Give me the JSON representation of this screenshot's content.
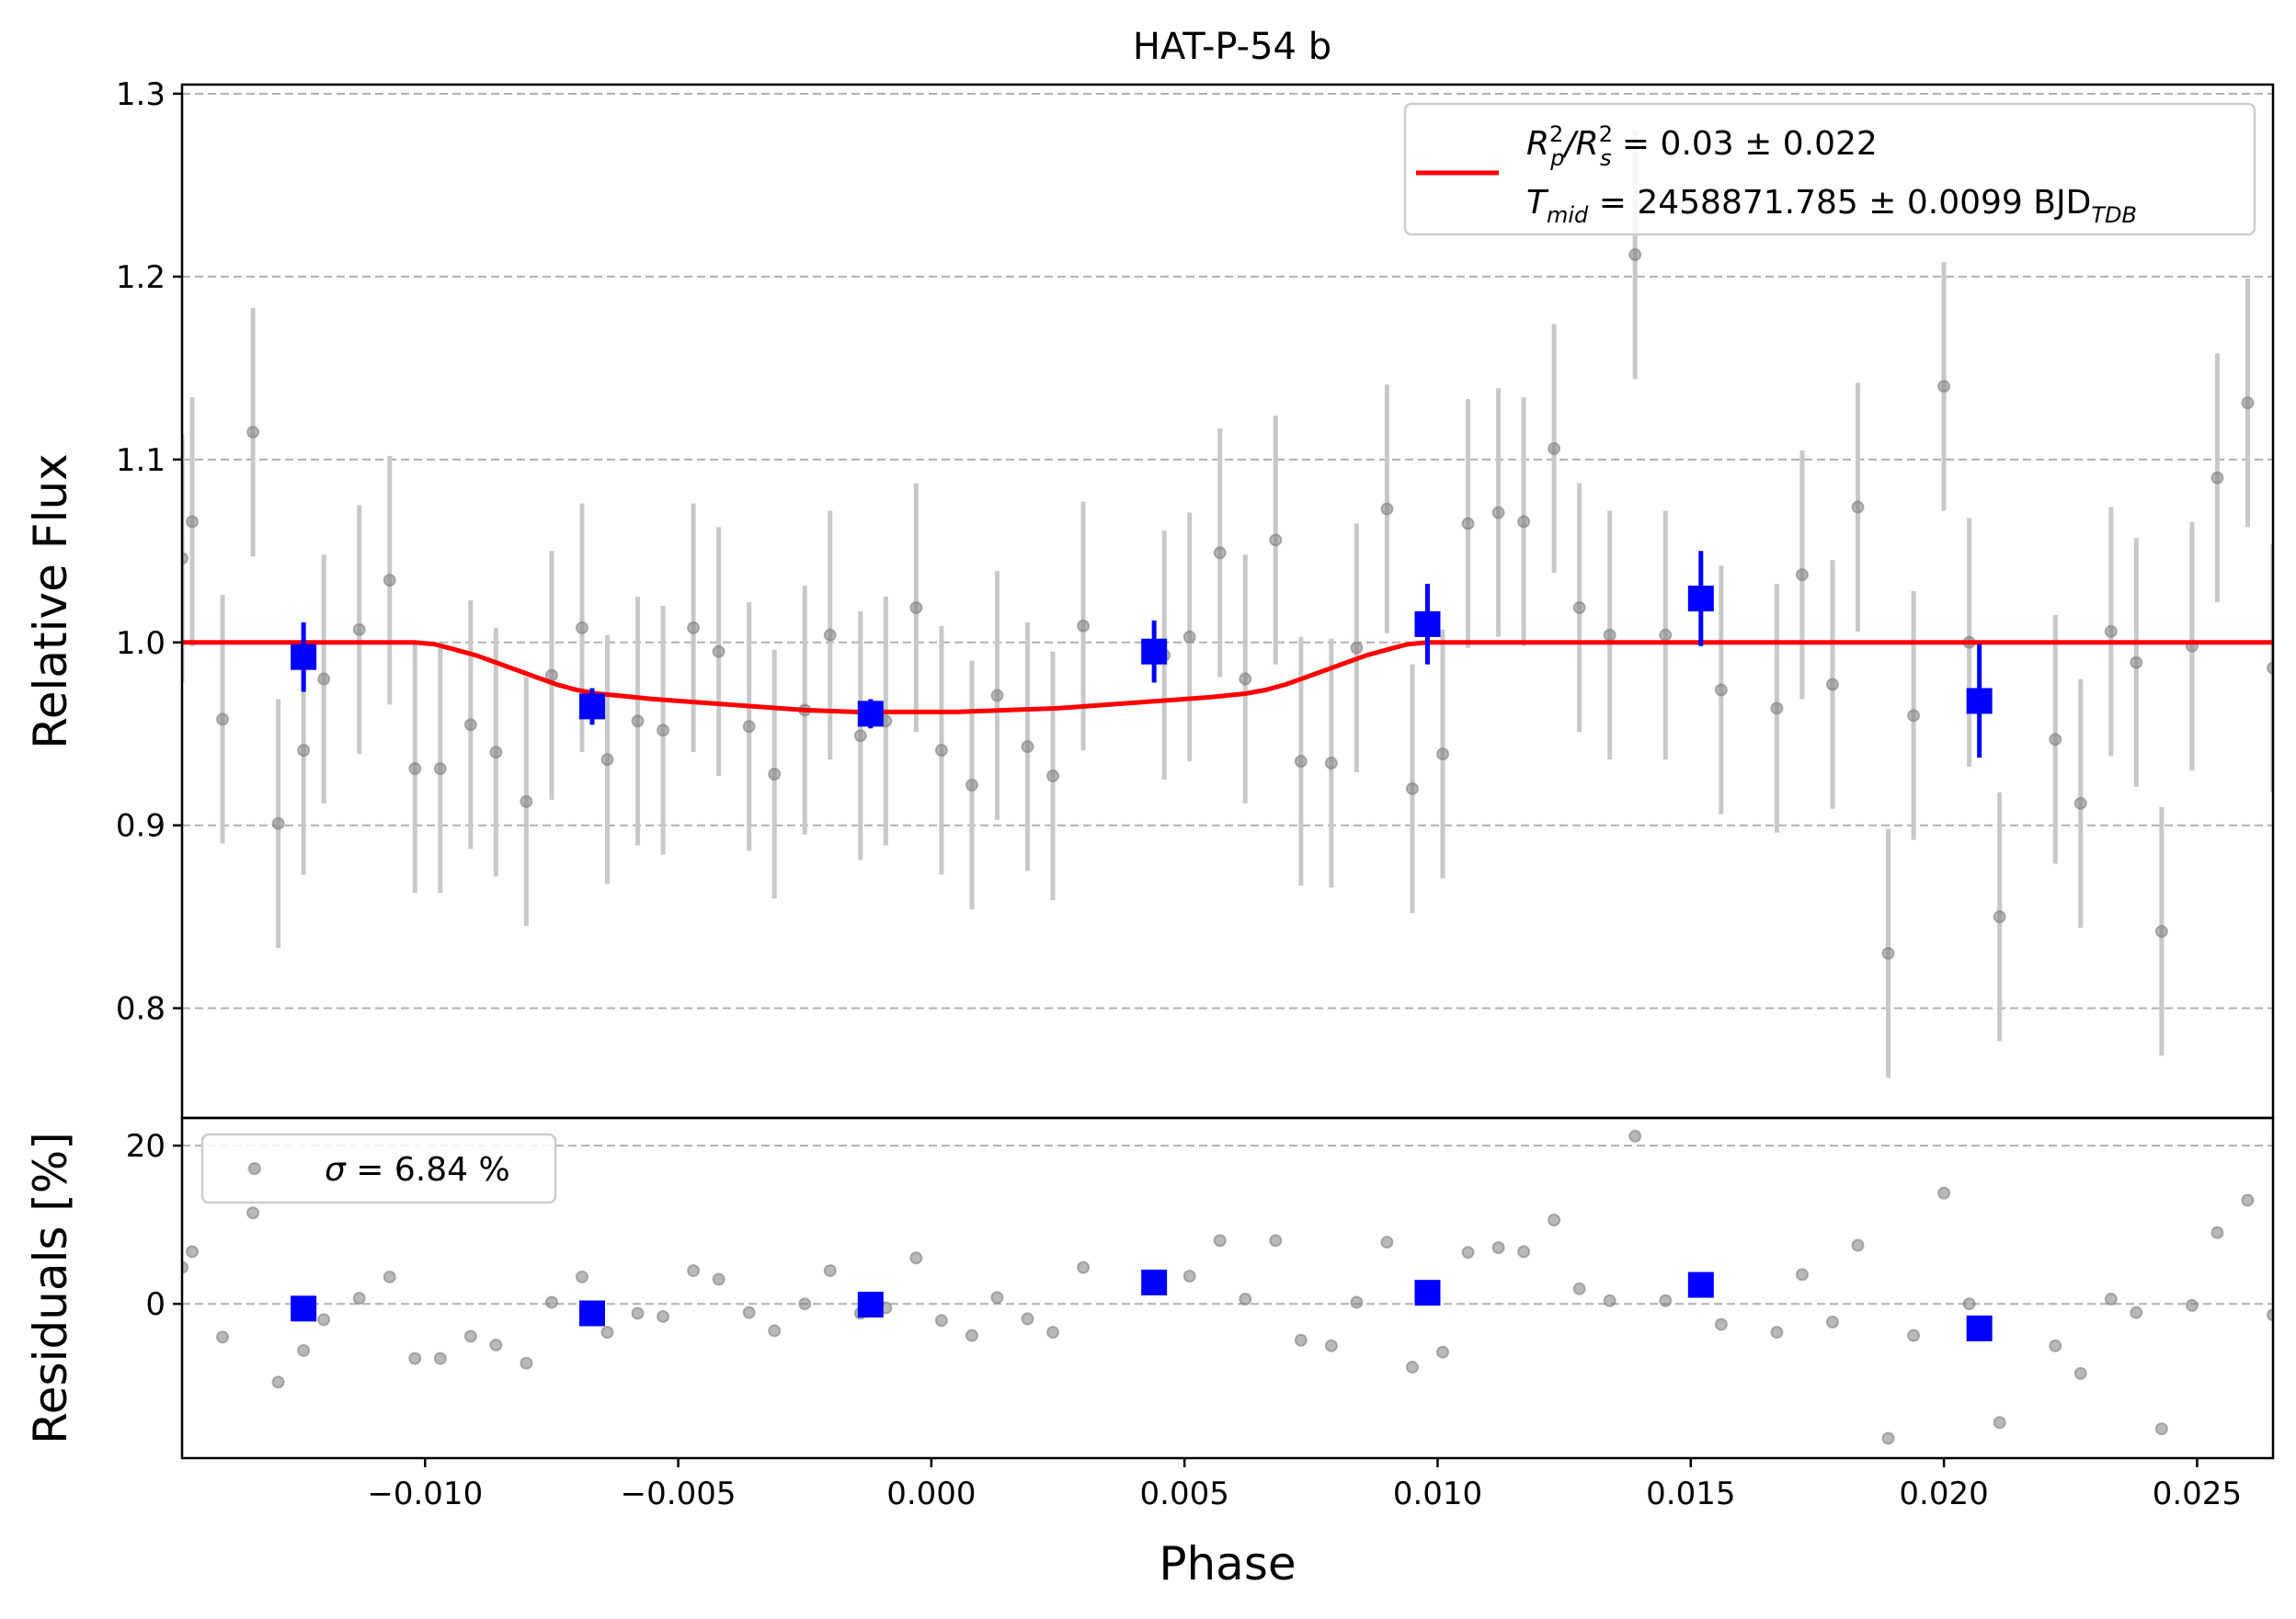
{
  "chart_data": {
    "title": "HAT-P-54 b",
    "xlabel": "Phase",
    "xlim": [
      -0.0148,
      0.0265
    ],
    "xticks": [
      -0.01,
      -0.005,
      0.0,
      0.005,
      0.01,
      0.015,
      0.02,
      0.025
    ],
    "xtick_labels": [
      "−0.010",
      "−0.005",
      "0.000",
      "0.005",
      "0.010",
      "0.015",
      "0.020",
      "0.025"
    ],
    "colors": {
      "raw": "#808080",
      "raw_err": "#c8c8c8",
      "binned": "#0000ff",
      "model": "#ff0000",
      "grid": "#b0b0b0"
    },
    "main_panel": {
      "type": "scatter",
      "ylabel": "Relative Flux",
      "ylim": [
        0.74,
        1.305
      ],
      "yticks": [
        0.8,
        0.9,
        1.0,
        1.1,
        1.2,
        1.3
      ],
      "ytick_labels": [
        "0.8",
        "0.9",
        "1.0",
        "1.1",
        "1.2",
        "1.3"
      ],
      "grid": "horizontal dashed",
      "legend_position": "top-right",
      "legend": {
        "line1_prefix": "R",
        "line1_sub1": "p",
        "line1_sup1": "2",
        "line1_slash": "/R",
        "line1_sub2": "s",
        "line1_sup2": "2",
        "line1_value": " = 0.03 ± 0.022",
        "line2_prefix": "T",
        "line2_sub": "mid",
        "line2_value": " = 2458871.785 ± 0.0099 BJD",
        "line2_unit_sub": "TDB"
      },
      "raw": {
        "x": [
          -0.0148,
          -0.0146,
          -0.014,
          -0.0134,
          -0.0129,
          -0.0124,
          -0.012,
          -0.0113,
          -0.0107,
          -0.0102,
          -0.0097,
          -0.0091,
          -0.0086,
          -0.008,
          -0.0075,
          -0.0069,
          -0.0064,
          -0.0058,
          -0.0053,
          -0.0047,
          -0.0042,
          -0.0036,
          -0.0031,
          -0.0025,
          -0.002,
          -0.0014,
          -0.0009,
          -0.0003,
          0.0002,
          0.0008,
          0.0013,
          0.0019,
          0.0024,
          0.003,
          0.0046,
          0.0051,
          0.0057,
          0.0062,
          0.0068,
          0.0073,
          0.0079,
          0.0084,
          0.009,
          0.0095,
          0.0101,
          0.0106,
          0.0112,
          0.0117,
          0.0123,
          0.0128,
          0.0134,
          0.0139,
          0.0145,
          0.0156,
          0.0167,
          0.0172,
          0.0178,
          0.0183,
          0.0189,
          0.0194,
          0.02,
          0.0205,
          0.0211,
          0.0222,
          0.0227,
          0.0233,
          0.0238,
          0.0243,
          0.0249,
          0.0254,
          0.026,
          0.0265
        ],
        "y": [
          1.046,
          1.066,
          0.958,
          1.115,
          0.901,
          0.941,
          0.98,
          1.007,
          1.034,
          0.931,
          0.931,
          0.955,
          0.94,
          0.913,
          0.982,
          1.008,
          0.936,
          0.957,
          0.952,
          1.008,
          0.995,
          0.954,
          0.928,
          0.963,
          1.004,
          0.949,
          0.957,
          1.019,
          0.941,
          0.922,
          0.971,
          0.943,
          0.927,
          1.009,
          0.993,
          1.003,
          1.049,
          0.98,
          1.056,
          0.935,
          0.934,
          0.997,
          1.073,
          0.92,
          0.939,
          1.065,
          1.071,
          1.066,
          1.106,
          1.019,
          1.004,
          1.212,
          1.004,
          0.974,
          0.964,
          1.037,
          0.977,
          1.074,
          0.83,
          0.96,
          1.14,
          1.0,
          0.85,
          0.947,
          0.912,
          1.006,
          0.989,
          0.842,
          0.998,
          1.09,
          1.131,
          0.986
        ],
        "yerr": 0.068
      },
      "binned": {
        "x": [
          -0.0124,
          -0.0067,
          -0.0012,
          0.0044,
          0.0098,
          0.0152,
          0.0207
        ],
        "y": [
          0.992,
          0.965,
          0.961,
          0.995,
          1.01,
          1.024,
          0.968
        ],
        "yerr": [
          0.019,
          0.01,
          0.008,
          0.017,
          0.022,
          0.026,
          0.031
        ]
      },
      "model": {
        "label": "",
        "x": [
          -0.0148,
          -0.0102,
          -0.0098,
          -0.0094,
          -0.009,
          -0.0086,
          -0.0082,
          -0.0078,
          -0.0074,
          -0.007,
          -0.0066,
          -0.0062,
          -0.0055,
          -0.0045,
          -0.0035,
          -0.0025,
          -0.0015,
          -0.0005,
          0.0005,
          0.0015,
          0.0025,
          0.0035,
          0.0045,
          0.0055,
          0.0062,
          0.0066,
          0.007,
          0.0074,
          0.0078,
          0.0082,
          0.0086,
          0.009,
          0.0094,
          0.0098,
          0.0102,
          0.0265
        ],
        "y": [
          1.0,
          1.0,
          0.999,
          0.996,
          0.993,
          0.989,
          0.985,
          0.981,
          0.977,
          0.974,
          0.972,
          0.971,
          0.969,
          0.967,
          0.965,
          0.963,
          0.962,
          0.962,
          0.962,
          0.963,
          0.964,
          0.966,
          0.968,
          0.97,
          0.972,
          0.974,
          0.977,
          0.981,
          0.985,
          0.989,
          0.993,
          0.996,
          0.999,
          1.0,
          1.0,
          1.0
        ]
      }
    },
    "residual_panel": {
      "type": "scatter",
      "ylabel": "Residuals [%]",
      "ylim": [
        -19.5,
        23.5
      ],
      "yticks": [
        0,
        20
      ],
      "ytick_labels": [
        "0",
        "20"
      ],
      "grid": "horizontal dashed",
      "legend_position": "top-left",
      "legend": {
        "sigma_symbol": "σ",
        "sigma_value": " = 6.84 %"
      },
      "raw": {
        "x": [
          -0.0148,
          -0.0146,
          -0.014,
          -0.0134,
          -0.0134,
          -0.0129,
          -0.0124,
          -0.012,
          -0.0113,
          -0.0107,
          -0.0102,
          -0.0097,
          -0.0091,
          -0.0086,
          -0.008,
          -0.0075,
          -0.0069,
          -0.0064,
          -0.0058,
          -0.0053,
          -0.0047,
          -0.0042,
          -0.0036,
          -0.0031,
          -0.0025,
          -0.002,
          -0.0014,
          -0.0009,
          -0.0003,
          0.0002,
          0.0008,
          0.0013,
          0.0019,
          0.0024,
          0.003,
          0.0051,
          0.0057,
          0.0062,
          0.0068,
          0.0073,
          0.0079,
          0.0084,
          0.009,
          0.0095,
          0.0101,
          0.0106,
          0.0112,
          0.0117,
          0.0123,
          0.0128,
          0.0134,
          0.0139,
          0.0145,
          0.0156,
          0.0167,
          0.0172,
          0.0178,
          0.0183,
          0.0189,
          0.0194,
          0.02,
          0.0205,
          0.0211,
          0.0222,
          0.0227,
          0.0233,
          0.0238,
          0.0243,
          0.0249,
          0.0254,
          0.026,
          0.0265
        ],
        "y": [
          4.6,
          6.6,
          -4.2,
          11.5,
          17.0,
          -9.9,
          -5.9,
          -2.0,
          0.7,
          3.4,
          -6.9,
          -6.9,
          -4.1,
          -5.2,
          -7.5,
          0.2,
          3.4,
          -3.6,
          -1.2,
          -1.6,
          4.2,
          3.1,
          -1.1,
          -3.4,
          0.0,
          4.2,
          -1.2,
          -0.5,
          5.8,
          -2.1,
          -4.0,
          0.8,
          -1.9,
          -3.6,
          4.6,
          3.5,
          8.0,
          0.6,
          8.0,
          -4.6,
          -5.3,
          0.2,
          7.8,
          -8.0,
          -6.1,
          6.5,
          7.1,
          6.6,
          10.6,
          1.9,
          0.4,
          21.2,
          0.4,
          -2.6,
          -3.6,
          3.7,
          -2.3,
          7.4,
          -17.0,
          -4.0,
          14.0,
          0.0,
          -15.0,
          -5.3,
          -8.8,
          0.6,
          -1.1,
          -15.8,
          -0.2,
          9.0,
          13.1,
          -1.4
        ]
      },
      "binned": {
        "x": [
          -0.0124,
          -0.0067,
          -0.0012,
          0.0044,
          0.0098,
          0.0152,
          0.0207
        ],
        "y": [
          -0.6,
          -1.2,
          -0.1,
          2.7,
          1.4,
          2.4,
          -3.1
        ]
      }
    }
  }
}
